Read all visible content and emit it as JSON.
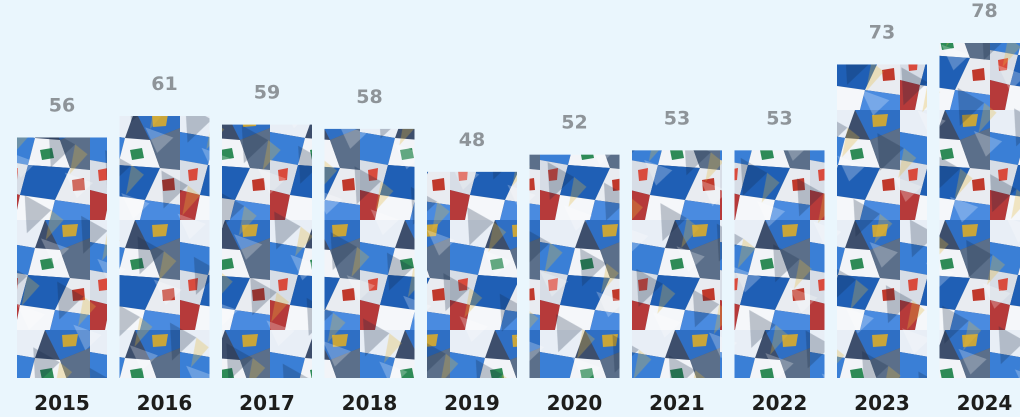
{
  "chart_data": {
    "type": "bar",
    "categories": [
      "2015",
      "2016",
      "2017",
      "2018",
      "2019",
      "2020",
      "2021",
      "2022",
      "2023",
      "2024"
    ],
    "values": [
      56,
      61,
      59,
      58,
      48,
      52,
      53,
      53,
      73,
      78
    ],
    "value_labels": [
      "56",
      "61",
      "59",
      "58",
      "48",
      "52",
      "53",
      "53",
      "73",
      "78"
    ],
    "title": "",
    "xlabel": "",
    "ylabel": "",
    "ylim": [
      0,
      78
    ],
    "grid": false,
    "legend": "none",
    "bar_fill": "photo of crushed plastic packaging",
    "colors": {
      "background": "#eaf6fd",
      "value_label": "#8e9499",
      "year_label": "#1d1d1b"
    }
  }
}
